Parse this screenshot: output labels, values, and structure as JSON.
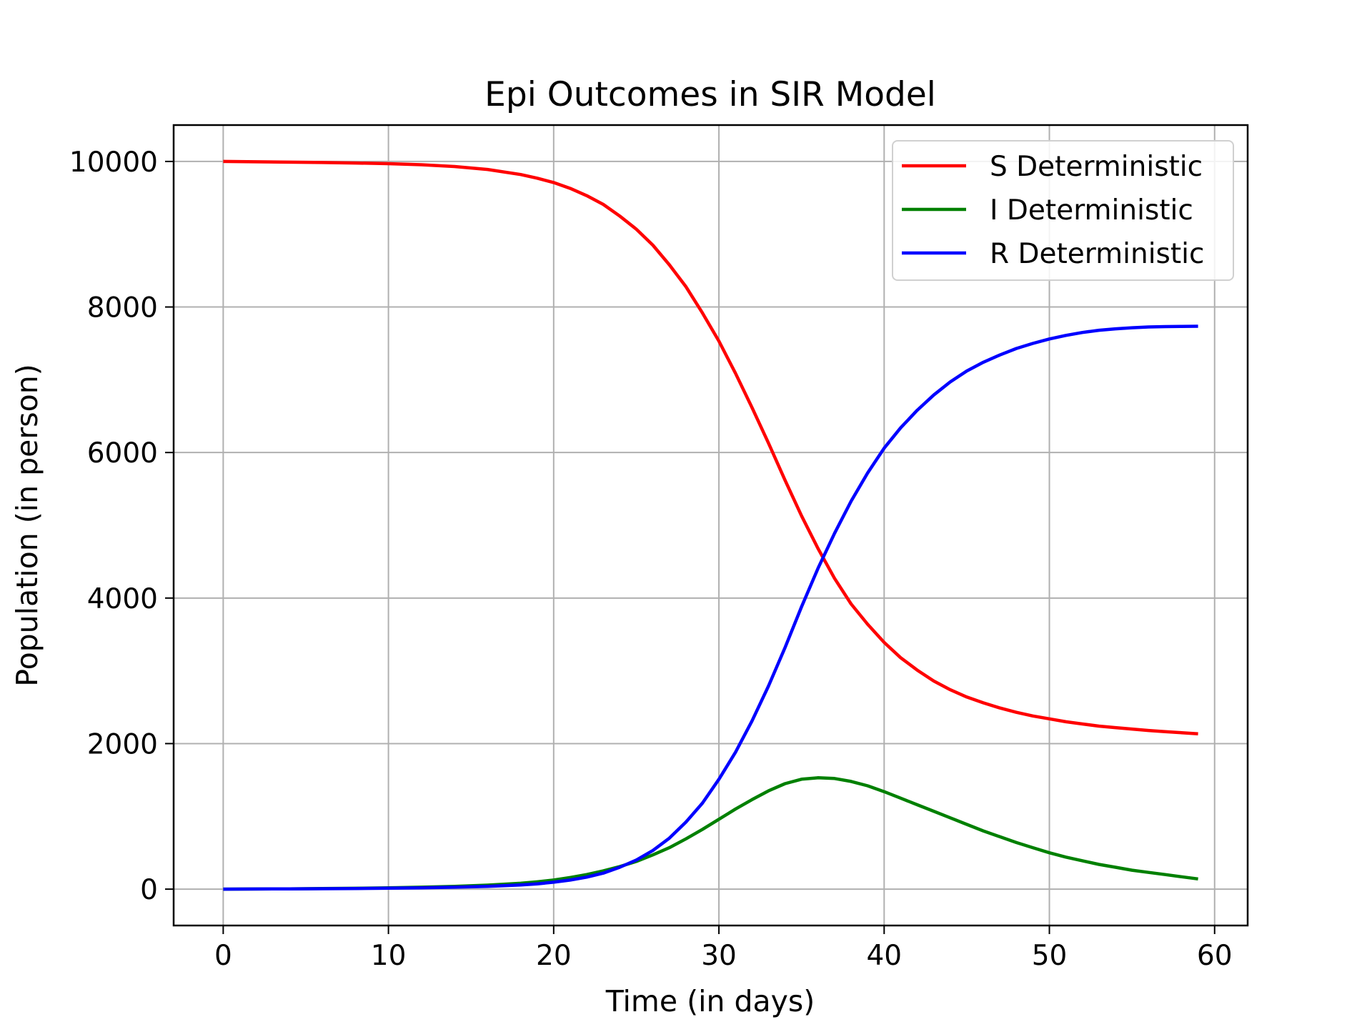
{
  "chart_data": {
    "type": "line",
    "title": "Epi Outcomes in SIR Model",
    "xlabel": "Time (in days)",
    "ylabel": "Population (in person)",
    "xlim": [
      -3,
      62
    ],
    "ylim": [
      -500,
      10500
    ],
    "xticks": [
      0,
      10,
      20,
      30,
      40,
      50,
      60
    ],
    "yticks": [
      0,
      2000,
      4000,
      6000,
      8000,
      10000
    ],
    "grid": true,
    "legend_position": "top-right",
    "x": [
      0,
      2,
      4,
      6,
      8,
      10,
      12,
      14,
      16,
      18,
      19,
      20,
      21,
      22,
      23,
      24,
      25,
      26,
      27,
      28,
      29,
      30,
      31,
      32,
      33,
      34,
      35,
      36,
      37,
      38,
      39,
      40,
      41,
      42,
      43,
      44,
      45,
      46,
      47,
      48,
      49,
      50,
      51,
      52,
      53,
      54,
      55,
      56,
      57,
      58,
      59
    ],
    "series": [
      {
        "name": "S Deterministic",
        "color": "#ff0000",
        "values": [
          10000,
          9995,
          9990,
          9985,
          9978,
          9970,
          9955,
          9930,
          9890,
          9820,
          9770,
          9710,
          9630,
          9530,
          9410,
          9250,
          9070,
          8850,
          8580,
          8280,
          7920,
          7530,
          7090,
          6620,
          6130,
          5620,
          5130,
          4680,
          4270,
          3920,
          3640,
          3390,
          3180,
          3010,
          2860,
          2740,
          2640,
          2560,
          2490,
          2430,
          2380,
          2340,
          2300,
          2270,
          2240,
          2220,
          2200,
          2180,
          2165,
          2150,
          2135
        ]
      },
      {
        "name": "I Deterministic",
        "color": "#008000",
        "values": [
          0,
          2,
          4,
          8,
          12,
          18,
          26,
          38,
          55,
          80,
          100,
          125,
          160,
          200,
          250,
          310,
          380,
          470,
          570,
          690,
          820,
          960,
          1100,
          1230,
          1350,
          1450,
          1510,
          1530,
          1520,
          1480,
          1420,
          1340,
          1250,
          1160,
          1070,
          980,
          890,
          800,
          720,
          640,
          570,
          500,
          440,
          390,
          340,
          300,
          260,
          230,
          200,
          170,
          140
        ]
      },
      {
        "name": "R Deterministic",
        "color": "#0000ff",
        "values": [
          0,
          2,
          4,
          6,
          9,
          13,
          18,
          26,
          38,
          58,
          73,
          95,
          125,
          165,
          220,
          300,
          400,
          530,
          700,
          920,
          1180,
          1510,
          1880,
          2310,
          2790,
          3320,
          3880,
          4410,
          4890,
          5330,
          5720,
          6060,
          6340,
          6580,
          6790,
          6970,
          7120,
          7240,
          7340,
          7430,
          7500,
          7560,
          7610,
          7650,
          7680,
          7700,
          7715,
          7725,
          7730,
          7733,
          7735
        ]
      }
    ]
  }
}
